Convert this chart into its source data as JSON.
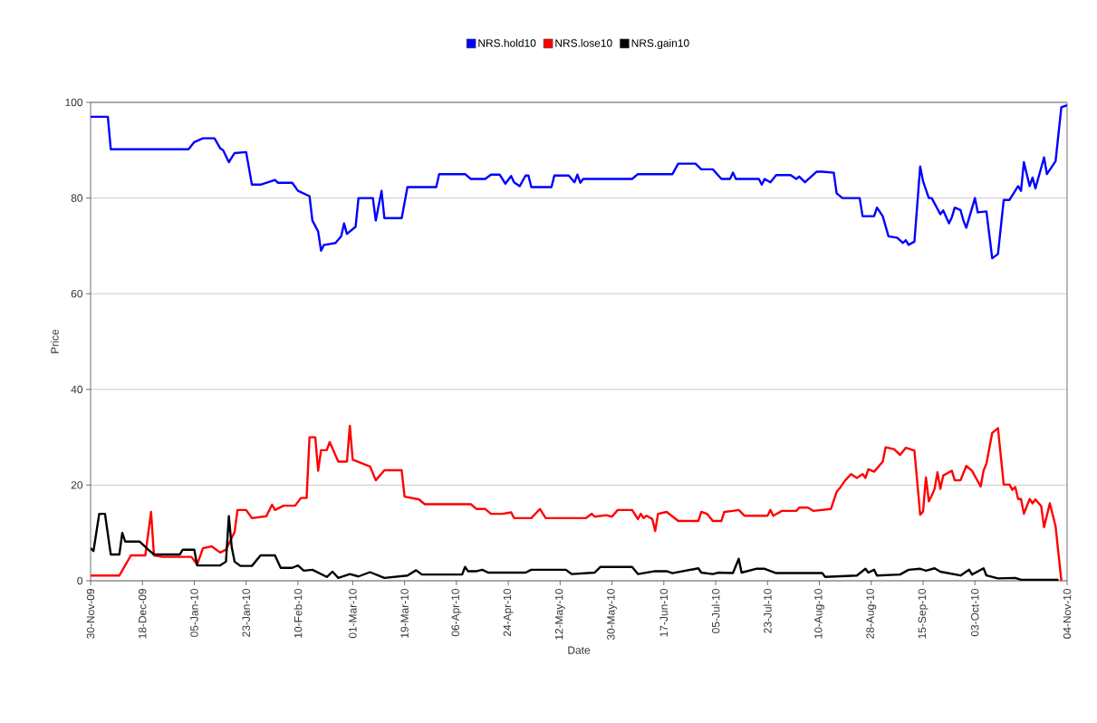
{
  "chart_data": {
    "type": "line",
    "xlabel": "Date",
    "ylabel": "Price",
    "xlim": [
      "2009-11-30",
      "2010-11-04"
    ],
    "xticks": [
      {
        "value": "2009-11-30",
        "label": "30-Nov-09"
      },
      {
        "value": "2009-12-18",
        "label": "18-Dec-09"
      },
      {
        "value": "2010-01-05",
        "label": "05-Jan-10"
      },
      {
        "value": "2010-01-23",
        "label": "23-Jan-10"
      },
      {
        "value": "2010-02-10",
        "label": "10-Feb-10"
      },
      {
        "value": "2010-03-01",
        "label": "01-Mar-10"
      },
      {
        "value": "2010-03-19",
        "label": "19-Mar-10"
      },
      {
        "value": "2010-04-06",
        "label": "06-Apr-10"
      },
      {
        "value": "2010-04-24",
        "label": "24-Apr-10"
      },
      {
        "value": "2010-05-12",
        "label": "12-May-10"
      },
      {
        "value": "2010-05-30",
        "label": "30-May-10"
      },
      {
        "value": "2010-06-17",
        "label": "17-Jun-10"
      },
      {
        "value": "2010-07-05",
        "label": "05-Jul-10"
      },
      {
        "value": "2010-07-23",
        "label": "23-Jul-10"
      },
      {
        "value": "2010-08-10",
        "label": "10-Aug-10"
      },
      {
        "value": "2010-08-28",
        "label": "28-Aug-10"
      },
      {
        "value": "2010-09-15",
        "label": "15-Sep-10"
      },
      {
        "value": "2010-10-03",
        "label": "03-Oct-10"
      },
      {
        "value": "2010-11-04",
        "label": "04-Nov-10"
      }
    ],
    "ylim": [
      0,
      100
    ],
    "yticks": [
      0,
      20,
      40,
      60,
      80,
      100
    ],
    "grid": "y",
    "legend": "top",
    "series": [
      {
        "name": "NRS.hold10",
        "color": "#0000ff",
        "x": [
          "2009-11-30",
          "2009-12-06",
          "2009-12-07",
          "2010-01-03",
          "2010-01-05",
          "2010-01-08",
          "2010-01-12",
          "2010-01-14",
          "2010-01-15",
          "2010-01-17",
          "2010-01-19",
          "2010-01-23",
          "2010-01-25",
          "2010-01-28",
          "2010-02-02",
          "2010-02-03",
          "2010-02-08",
          "2010-02-10",
          "2010-02-14",
          "2010-02-15",
          "2010-02-17",
          "2010-02-18",
          "2010-02-19",
          "2010-02-23",
          "2010-02-25",
          "2010-02-26",
          "2010-02-27",
          "2010-03-02",
          "2010-03-03",
          "2010-03-08",
          "2010-03-09",
          "2010-03-11",
          "2010-03-12",
          "2010-03-18",
          "2010-03-20",
          "2010-03-30",
          "2010-03-31",
          "2010-04-09",
          "2010-04-11",
          "2010-04-16",
          "2010-04-18",
          "2010-04-21",
          "2010-04-23",
          "2010-04-25",
          "2010-04-26",
          "2010-04-28",
          "2010-04-30",
          "2010-05-01",
          "2010-05-02",
          "2010-05-09",
          "2010-05-10",
          "2010-05-15",
          "2010-05-17",
          "2010-05-18",
          "2010-05-19",
          "2010-05-20",
          "2010-06-06",
          "2010-06-08",
          "2010-06-20",
          "2010-06-22",
          "2010-06-28",
          "2010-06-30",
          "2010-07-04",
          "2010-07-07",
          "2010-07-10",
          "2010-07-11",
          "2010-07-12",
          "2010-07-20",
          "2010-07-21",
          "2010-07-22",
          "2010-07-24",
          "2010-07-26",
          "2010-07-31",
          "2010-08-02",
          "2010-08-03",
          "2010-08-05",
          "2010-08-09",
          "2010-08-11",
          "2010-08-15",
          "2010-08-16",
          "2010-08-18",
          "2010-08-24",
          "2010-08-25",
          "2010-08-29",
          "2010-08-30",
          "2010-09-01",
          "2010-09-03",
          "2010-09-06",
          "2010-09-08",
          "2010-09-09",
          "2010-09-10",
          "2010-09-12",
          "2010-09-14",
          "2010-09-15",
          "2010-09-17",
          "2010-09-18",
          "2010-09-21",
          "2010-09-22",
          "2010-09-24",
          "2010-09-25",
          "2010-09-26",
          "2010-09-28",
          "2010-09-29",
          "2010-09-30",
          "2010-10-03",
          "2010-10-04",
          "2010-10-07",
          "2010-10-09",
          "2010-10-11",
          "2010-10-13",
          "2010-10-15",
          "2010-10-18",
          "2010-10-19",
          "2010-10-20",
          "2010-10-22",
          "2010-10-23",
          "2010-10-24",
          "2010-10-27",
          "2010-10-28",
          "2010-10-31",
          "2010-11-02",
          "2010-11-04"
        ],
        "values": [
          97,
          97,
          90.2,
          90.2,
          91.7,
          92.5,
          92.5,
          90.4,
          90,
          87.5,
          89.4,
          89.6,
          82.8,
          82.8,
          83.8,
          83.2,
          83.2,
          81.5,
          80.4,
          75.3,
          73,
          69,
          70.2,
          70.6,
          72,
          74.7,
          72.5,
          74,
          80,
          80,
          75.3,
          81.5,
          75.8,
          75.8,
          82.3,
          82.3,
          85,
          85,
          84,
          84,
          84.9,
          84.9,
          83,
          84.6,
          83.3,
          82.5,
          84.7,
          84.7,
          82.3,
          82.3,
          84.7,
          84.7,
          83.3,
          84.9,
          83.2,
          84,
          84,
          85,
          85,
          87.2,
          87.2,
          86,
          86,
          84,
          84,
          85.3,
          84,
          84,
          82.8,
          84,
          83.3,
          84.8,
          84.8,
          84,
          84.5,
          83.3,
          85.5,
          85.5,
          85.3,
          81,
          80,
          80,
          76.2,
          76.2,
          78,
          76.2,
          72,
          71.7,
          70.6,
          71.2,
          70.2,
          70.9,
          86.6,
          83.5,
          80,
          80,
          76.6,
          77.4,
          74.7,
          76,
          78,
          77.5,
          75.3,
          73.8,
          80,
          77,
          77.2,
          67.4,
          68.3,
          79.6,
          79.6,
          82.5,
          81.5,
          87.5,
          82.5,
          84.3,
          82,
          88.5,
          85,
          87.7,
          99,
          99.4
        ]
      },
      {
        "name": "NRS.lose10",
        "color": "#ff0000",
        "x": [
          "2009-11-30",
          "2009-12-10",
          "2009-12-14",
          "2009-12-19",
          "2009-12-21",
          "2009-12-22",
          "2009-12-25",
          "2010-01-04",
          "2010-01-06",
          "2010-01-08",
          "2010-01-11",
          "2010-01-14",
          "2010-01-16",
          "2010-01-19",
          "2010-01-20",
          "2010-01-23",
          "2010-01-25",
          "2010-01-30",
          "2010-02-01",
          "2010-02-02",
          "2010-02-05",
          "2010-02-09",
          "2010-02-11",
          "2010-02-13",
          "2010-02-14",
          "2010-02-16",
          "2010-02-17",
          "2010-02-18",
          "2010-02-20",
          "2010-02-21",
          "2010-02-24",
          "2010-02-27",
          "2010-02-28",
          "2010-03-01",
          "2010-03-07",
          "2010-03-09",
          "2010-03-12",
          "2010-03-18",
          "2010-03-19",
          "2010-03-24",
          "2010-03-26",
          "2010-04-11",
          "2010-04-13",
          "2010-04-16",
          "2010-04-18",
          "2010-04-22",
          "2010-04-25",
          "2010-04-26",
          "2010-05-02",
          "2010-05-05",
          "2010-05-07",
          "2010-05-21",
          "2010-05-23",
          "2010-05-24",
          "2010-05-28",
          "2010-05-30",
          "2010-06-01",
          "2010-06-06",
          "2010-06-08",
          "2010-06-09",
          "2010-06-10",
          "2010-06-11",
          "2010-06-13",
          "2010-06-14",
          "2010-06-15",
          "2010-06-18",
          "2010-06-22",
          "2010-06-29",
          "2010-06-30",
          "2010-07-02",
          "2010-07-04",
          "2010-07-07",
          "2010-07-08",
          "2010-07-11",
          "2010-07-13",
          "2010-07-15",
          "2010-07-23",
          "2010-07-24",
          "2010-07-25",
          "2010-07-28",
          "2010-08-02",
          "2010-08-03",
          "2010-08-06",
          "2010-08-08",
          "2010-08-14",
          "2010-08-16",
          "2010-08-17",
          "2010-08-19",
          "2010-08-21",
          "2010-08-23",
          "2010-08-25",
          "2010-08-26",
          "2010-08-27",
          "2010-08-29",
          "2010-09-01",
          "2010-09-02",
          "2010-09-05",
          "2010-09-07",
          "2010-09-09",
          "2010-09-12",
          "2010-09-14",
          "2010-09-15",
          "2010-09-16",
          "2010-09-17",
          "2010-09-18",
          "2010-09-19",
          "2010-09-20",
          "2010-09-21",
          "2010-09-22",
          "2010-09-25",
          "2010-09-26",
          "2010-09-28",
          "2010-09-30",
          "2010-10-02",
          "2010-10-05",
          "2010-10-06",
          "2010-10-07",
          "2010-10-09",
          "2010-10-11",
          "2010-10-13",
          "2010-10-15",
          "2010-10-16",
          "2010-10-17",
          "2010-10-18",
          "2010-10-19",
          "2010-10-20",
          "2010-10-22",
          "2010-10-23",
          "2010-10-24",
          "2010-10-26",
          "2010-10-27",
          "2010-10-29",
          "2010-10-31",
          "2010-11-02"
        ],
        "values": [
          1.1,
          1.1,
          5.3,
          5.3,
          14.4,
          5.3,
          5,
          5,
          3.4,
          6.8,
          7.2,
          5.9,
          6.5,
          10.2,
          14.8,
          14.8,
          13.1,
          13.5,
          15.9,
          14.8,
          15.7,
          15.7,
          17.3,
          17.3,
          30,
          30,
          23,
          27.3,
          27.3,
          29,
          24.9,
          24.9,
          32.4,
          25.3,
          23.9,
          21,
          23.1,
          23.1,
          17.6,
          17,
          16,
          16,
          15,
          15,
          14,
          14,
          14.3,
          13.1,
          13.1,
          15,
          13.1,
          13.1,
          14,
          13.4,
          13.7,
          13.4,
          14.8,
          14.8,
          12.9,
          14,
          13.1,
          13.6,
          12.9,
          10.4,
          14,
          14.4,
          12.5,
          12.5,
          14.4,
          14,
          12.5,
          12.5,
          14.4,
          14.6,
          14.8,
          13.6,
          13.6,
          14.8,
          13.6,
          14.6,
          14.6,
          15.3,
          15.3,
          14.6,
          15,
          18.6,
          19.3,
          21,
          22.3,
          21.5,
          22.3,
          21.5,
          23.3,
          22.8,
          24.9,
          27.9,
          27.5,
          26.3,
          27.8,
          27.2,
          13.8,
          14.5,
          21.6,
          16.6,
          17.8,
          19.2,
          22.7,
          19.2,
          22,
          23,
          21,
          21,
          24,
          23,
          19.7,
          23,
          24.5,
          30.9,
          31.9,
          20.1,
          20.1,
          19,
          19.6,
          17.1,
          17.1,
          14,
          17.1,
          16.2,
          17,
          15.6,
          11.2,
          16.2,
          11.4,
          0
        ]
      },
      {
        "name": "NRS.gain10",
        "color": "#000000",
        "x": [
          "2009-11-30",
          "2009-12-01",
          "2009-12-03",
          "2009-12-05",
          "2009-12-07",
          "2009-12-10",
          "2009-12-11",
          "2009-12-12",
          "2009-12-17",
          "2009-12-20",
          "2009-12-22",
          "2009-12-31",
          "2010-01-01",
          "2010-01-05",
          "2010-01-06",
          "2010-01-14",
          "2010-01-16",
          "2010-01-17",
          "2010-01-18",
          "2010-01-19",
          "2010-01-21",
          "2010-01-25",
          "2010-01-28",
          "2010-02-02",
          "2010-02-04",
          "2010-02-08",
          "2010-02-10",
          "2010-02-12",
          "2010-02-15",
          "2010-02-20",
          "2010-02-22",
          "2010-02-24",
          "2010-02-28",
          "2010-03-03",
          "2010-03-07",
          "2010-03-12",
          "2010-03-20",
          "2010-03-23",
          "2010-03-25",
          "2010-04-08",
          "2010-04-09",
          "2010-04-10",
          "2010-04-13",
          "2010-04-15",
          "2010-04-17",
          "2010-04-30",
          "2010-05-02",
          "2010-05-14",
          "2010-05-16",
          "2010-05-24",
          "2010-05-26",
          "2010-06-06",
          "2010-06-08",
          "2010-06-14",
          "2010-06-18",
          "2010-06-20",
          "2010-06-29",
          "2010-06-30",
          "2010-07-04",
          "2010-07-06",
          "2010-07-11",
          "2010-07-13",
          "2010-07-14",
          "2010-07-19",
          "2010-07-22",
          "2010-07-26",
          "2010-08-11",
          "2010-08-12",
          "2010-08-23",
          "2010-08-26",
          "2010-08-27",
          "2010-08-29",
          "2010-08-30",
          "2010-09-07",
          "2010-09-10",
          "2010-09-14",
          "2010-09-16",
          "2010-09-19",
          "2010-09-21",
          "2010-09-28",
          "2010-10-01",
          "2010-10-02",
          "2010-10-06",
          "2010-10-07",
          "2010-10-11",
          "2010-10-17",
          "2010-10-19",
          "2010-11-01"
        ],
        "values": [
          6.8,
          6.2,
          14,
          14,
          5.5,
          5.5,
          10,
          8.2,
          8.2,
          6.5,
          5.5,
          5.5,
          6.5,
          6.5,
          3.2,
          3.2,
          4,
          13.5,
          7,
          4,
          3.1,
          3.1,
          5.3,
          5.3,
          2.7,
          2.7,
          3.2,
          2.1,
          2.3,
          0.8,
          1.9,
          0.6,
          1.4,
          0.9,
          1.8,
          0.6,
          1.1,
          2.2,
          1.3,
          1.3,
          2.9,
          2,
          2,
          2.3,
          1.7,
          1.7,
          2.3,
          2.3,
          1.4,
          1.7,
          2.9,
          2.9,
          1.4,
          2,
          2,
          1.6,
          2.6,
          1.7,
          1.4,
          1.7,
          1.6,
          4.6,
          1.7,
          2.5,
          2.5,
          1.6,
          1.6,
          0.8,
          1.1,
          2.5,
          1.7,
          2.3,
          1.1,
          1.3,
          2.3,
          2.5,
          2.1,
          2.6,
          1.9,
          1.1,
          2.3,
          1.3,
          2.6,
          1.1,
          0.5,
          0.6,
          0.2,
          0.2
        ]
      }
    ]
  }
}
